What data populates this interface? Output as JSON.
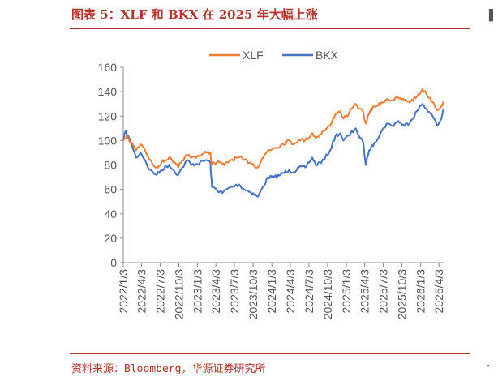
{
  "header": {
    "title": "图表 5：XLF 和 BKX 在 2025 年大幅上涨"
  },
  "footer": {
    "source": "资料来源：Bloomberg，华源证券研究所"
  },
  "colors": {
    "accent": "#b5332a",
    "xlf": "#ed7d31",
    "bkx": "#4472c4"
  },
  "chart_data": {
    "type": "line",
    "legend_position": "top-center",
    "ylim": [
      0,
      160
    ],
    "yticks": [
      0,
      20,
      40,
      60,
      80,
      100,
      120,
      140,
      160
    ],
    "xlim": [
      "2022/1/3",
      "2026/4/30"
    ],
    "xticks": [
      "2022/1/3",
      "2022/4/3",
      "2022/7/3",
      "2022/10/3",
      "2023/1/3",
      "2023/4/3",
      "2023/7/3",
      "2023/10/3",
      "2024/1/3",
      "2024/4/3",
      "2024/7/3",
      "2024/10/3",
      "2025/1/3",
      "2025/4/3",
      "2025/7/3",
      "2025/10/3",
      "2026/1/3",
      "2026/4/3"
    ],
    "grid": false,
    "series": [
      {
        "name": "XLF",
        "color": "#ed7d31",
        "points": [
          [
            "2022/1/3",
            100
          ],
          [
            "2022/1/20",
            104
          ],
          [
            "2022/2/10",
            98
          ],
          [
            "2022/3/7",
            92
          ],
          [
            "2022/3/29",
            97
          ],
          [
            "2022/4/20",
            92
          ],
          [
            "2022/5/12",
            84
          ],
          [
            "2022/6/16",
            78
          ],
          [
            "2022/7/10",
            82
          ],
          [
            "2022/8/15",
            86
          ],
          [
            "2022/9/5",
            82
          ],
          [
            "2022/9/30",
            78
          ],
          [
            "2022/10/20",
            84
          ],
          [
            "2022/11/15",
            88
          ],
          [
            "2022/12/5",
            86
          ],
          [
            "2023/1/15",
            88
          ],
          [
            "2023/2/15",
            90
          ],
          [
            "2023/3/7",
            90
          ],
          [
            "2023/3/13",
            80
          ],
          [
            "2023/3/24",
            82
          ],
          [
            "2023/4/20",
            82
          ],
          [
            "2023/5/15",
            80
          ],
          [
            "2023/6/15",
            84
          ],
          [
            "2023/7/20",
            86
          ],
          [
            "2023/8/20",
            84
          ],
          [
            "2023/9/20",
            82
          ],
          [
            "2023/10/27",
            78
          ],
          [
            "2023/11/20",
            86
          ],
          [
            "2023/12/15",
            92
          ],
          [
            "2024/1/15",
            94
          ],
          [
            "2024/2/15",
            96
          ],
          [
            "2024/3/28",
            100
          ],
          [
            "2024/4/18",
            97
          ],
          [
            "2024/5/15",
            101
          ],
          [
            "2024/6/15",
            100
          ],
          [
            "2024/7/20",
            106
          ],
          [
            "2024/8/5",
            102
          ],
          [
            "2024/9/15",
            108
          ],
          [
            "2024/10/15",
            112
          ],
          [
            "2024/11/11",
            122
          ],
          [
            "2024/12/5",
            124
          ],
          [
            "2024/12/20",
            118
          ],
          [
            "2025/1/15",
            122
          ],
          [
            "2025/2/18",
            130
          ],
          [
            "2025/3/10",
            126
          ],
          [
            "2025/3/28",
            123
          ],
          [
            "2025/4/8",
            114
          ],
          [
            "2025/4/25",
            122
          ],
          [
            "2025/5/20",
            128
          ],
          [
            "2025/6/20",
            130
          ],
          [
            "2025/7/20",
            134
          ],
          [
            "2025/8/15",
            133
          ],
          [
            "2025/9/15",
            135
          ],
          [
            "2025/10/15",
            133
          ],
          [
            "2025/11/15",
            132
          ],
          [
            "2025/12/15",
            136
          ],
          [
            "2026/1/12",
            142
          ],
          [
            "2026/2/1",
            138
          ],
          [
            "2026/2/20",
            134
          ],
          [
            "2026/3/10",
            130
          ],
          [
            "2026/3/25",
            125
          ],
          [
            "2026/4/15",
            128
          ],
          [
            "2026/4/25",
            132
          ]
        ]
      },
      {
        "name": "BKX",
        "color": "#4472c4",
        "points": [
          [
            "2022/1/3",
            100
          ],
          [
            "2022/1/15",
            108
          ],
          [
            "2022/2/10",
            98
          ],
          [
            "2022/3/7",
            86
          ],
          [
            "2022/3/29",
            90
          ],
          [
            "2022/4/20",
            84
          ],
          [
            "2022/5/12",
            76
          ],
          [
            "2022/6/16",
            72
          ],
          [
            "2022/7/10",
            76
          ],
          [
            "2022/8/15",
            80
          ],
          [
            "2022/9/5",
            76
          ],
          [
            "2022/9/30",
            72
          ],
          [
            "2022/10/20",
            78
          ],
          [
            "2022/11/15",
            84
          ],
          [
            "2022/12/5",
            80
          ],
          [
            "2023/1/15",
            82
          ],
          [
            "2023/2/15",
            84
          ],
          [
            "2023/3/7",
            82
          ],
          [
            "2023/3/10",
            72
          ],
          [
            "2023/3/15",
            62
          ],
          [
            "2023/4/5",
            60
          ],
          [
            "2023/5/4",
            57
          ],
          [
            "2023/5/25",
            60
          ],
          [
            "2023/6/20",
            62
          ],
          [
            "2023/7/25",
            64
          ],
          [
            "2023/8/20",
            60
          ],
          [
            "2023/9/20",
            58
          ],
          [
            "2023/10/27",
            54
          ],
          [
            "2023/11/20",
            62
          ],
          [
            "2023/12/15",
            70
          ],
          [
            "2024/1/15",
            70
          ],
          [
            "2024/2/15",
            72
          ],
          [
            "2024/3/28",
            76
          ],
          [
            "2024/4/18",
            74
          ],
          [
            "2024/5/15",
            78
          ],
          [
            "2024/6/15",
            78
          ],
          [
            "2024/7/20",
            86
          ],
          [
            "2024/8/5",
            80
          ],
          [
            "2024/9/15",
            84
          ],
          [
            "2024/10/15",
            92
          ],
          [
            "2024/11/11",
            104
          ],
          [
            "2024/12/5",
            106
          ],
          [
            "2024/12/20",
            100
          ],
          [
            "2025/1/15",
            104
          ],
          [
            "2025/2/18",
            110
          ],
          [
            "2025/3/10",
            102
          ],
          [
            "2025/3/28",
            98
          ],
          [
            "2025/4/8",
            80
          ],
          [
            "2025/4/25",
            92
          ],
          [
            "2025/5/20",
            98
          ],
          [
            "2025/6/20",
            106
          ],
          [
            "2025/7/20",
            114
          ],
          [
            "2025/8/15",
            112
          ],
          [
            "2025/9/15",
            116
          ],
          [
            "2025/10/15",
            112
          ],
          [
            "2025/11/15",
            116
          ],
          [
            "2025/12/15",
            124
          ],
          [
            "2026/1/12",
            130
          ],
          [
            "2026/2/1",
            126
          ],
          [
            "2026/2/20",
            122
          ],
          [
            "2026/3/10",
            118
          ],
          [
            "2026/3/25",
            112
          ],
          [
            "2026/4/15",
            118
          ],
          [
            "2026/4/25",
            126
          ]
        ]
      }
    ]
  }
}
